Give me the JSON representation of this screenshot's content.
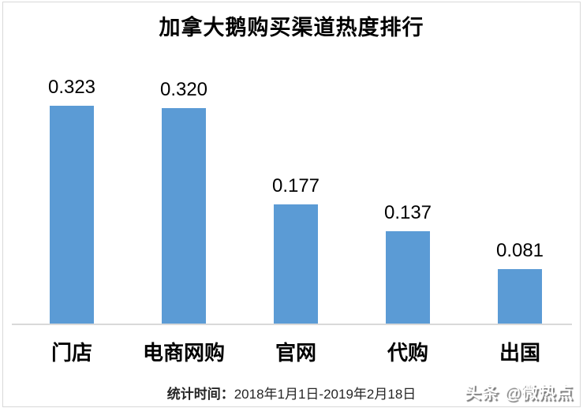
{
  "page": {
    "border_color": "#d9d9d9",
    "background": "#ffffff"
  },
  "chart_data": {
    "type": "bar",
    "title": "加拿大鹅购买渠道热度排行",
    "categories": [
      "门店",
      "电商网购",
      "官网",
      "代购",
      "出国"
    ],
    "values": [
      0.323,
      0.32,
      0.177,
      0.137,
      0.081
    ],
    "value_labels": [
      "0.323",
      "0.320",
      "0.177",
      "0.137",
      "0.081"
    ],
    "xlabel": "",
    "ylabel": "",
    "ylim": [
      0,
      0.41
    ],
    "grid": false,
    "legend": false,
    "bar_color": "#5b9bd5",
    "axis_line_color": "#d9d9d9",
    "label_color": "#000000"
  },
  "footer": {
    "stat_label": "统计时间：",
    "stat_range": "2018年1月1日-2019年2月18日"
  },
  "watermark": {
    "text": "头条 @微热点"
  }
}
